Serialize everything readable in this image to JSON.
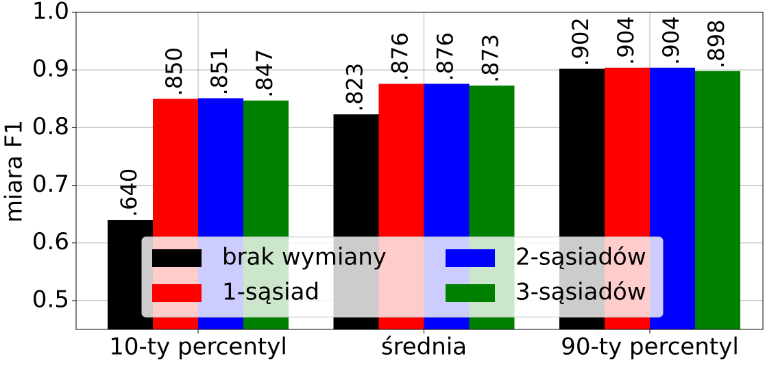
{
  "chart_data": {
    "type": "bar",
    "ylabel": "miara F1",
    "categories": [
      "10-ty percentyl",
      "średnia",
      "90-ty percentyl"
    ],
    "series": [
      {
        "name": "brak wymiany",
        "color": "#000000",
        "values": [
          0.64,
          0.823,
          0.902
        ],
        "value_labels": [
          ".640",
          ".823",
          ".902"
        ]
      },
      {
        "name": "1-sąsiad",
        "color": "#ff0000",
        "values": [
          0.85,
          0.876,
          0.904
        ],
        "value_labels": [
          ".850",
          ".876",
          ".904"
        ]
      },
      {
        "name": "2-sąsiadów",
        "color": "#0000ff",
        "values": [
          0.851,
          0.876,
          0.904
        ],
        "value_labels": [
          ".851",
          ".876",
          ".904"
        ]
      },
      {
        "name": "3-sąsiadów",
        "color": "#008000",
        "values": [
          0.847,
          0.873,
          0.898
        ],
        "value_labels": [
          ".847",
          ".873",
          ".898"
        ]
      }
    ],
    "ylim": [
      0.45,
      1.0
    ],
    "yticks": [
      0.5,
      0.6,
      0.7,
      0.8,
      0.9,
      {
        "value": 1.0,
        "label": "1.0"
      }
    ],
    "grid": true,
    "legend": "lower center",
    "legend_columns": 2
  }
}
